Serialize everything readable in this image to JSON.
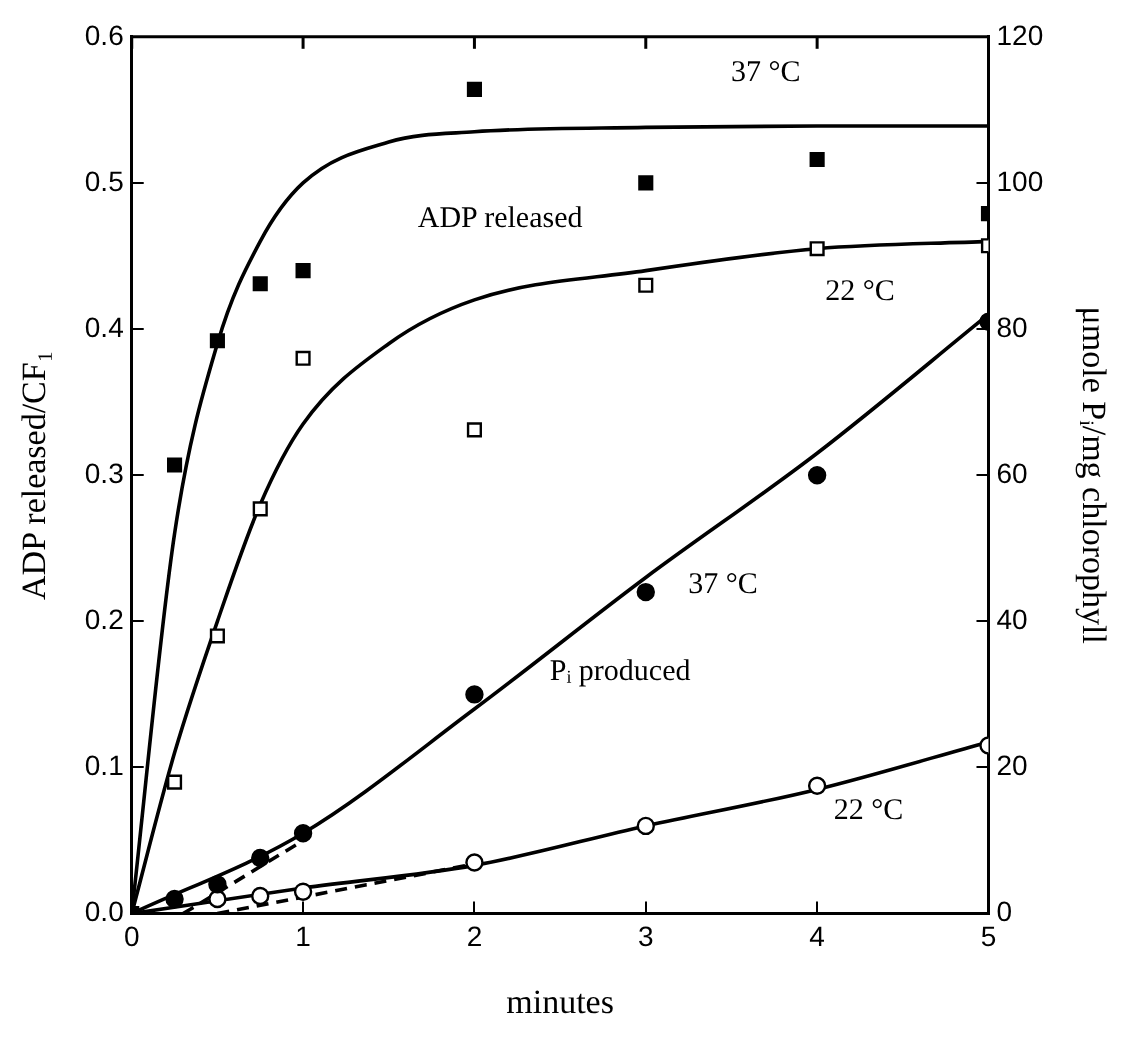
{
  "chart_data": {
    "type": "scatter",
    "xlabel": "minutes",
    "ylabel": "ADP released/CF₁",
    "y2label": "μmole Pᵢ/mg chlorophyll",
    "xlim": [
      0,
      5
    ],
    "xticks": [
      0,
      1,
      2,
      3,
      4,
      5
    ],
    "ylim": [
      0,
      0.6
    ],
    "yticks": [
      {
        "value": 0,
        "label": "0.0"
      },
      0.1,
      0.2,
      0.3,
      0.4,
      0.5,
      0.6
    ],
    "y2lim": [
      0,
      120
    ],
    "y2ticks": [
      0,
      20,
      40,
      60,
      80,
      100,
      120
    ],
    "grid": false,
    "legend": false,
    "series": [
      {
        "type": "scatter",
        "marker": "square",
        "color": "#000000",
        "x": [
          0,
          0.25,
          0.5,
          0.75,
          1,
          2,
          3,
          4,
          5
        ],
        "values": [
          0,
          0.307,
          0.392,
          0.431,
          0.44,
          0.564,
          0.5,
          0.516,
          0.479
        ]
      },
      {
        "type": "line",
        "marker": "none",
        "line_style": "solid",
        "color": "#000000",
        "x": [
          0,
          0.25,
          0.5,
          0.75,
          1,
          1.5,
          2,
          3,
          4,
          5
        ],
        "values": [
          0,
          0.26,
          0.39,
          0.46,
          0.5,
          0.528,
          0.535,
          0.538,
          0.539,
          0.539
        ]
      },
      {
        "type": "scatter",
        "marker": "square",
        "color": "#ffffff",
        "x": [
          0.25,
          0.5,
          0.75,
          1,
          2,
          3,
          4,
          5
        ],
        "values": [
          0.09,
          0.19,
          0.277,
          0.38,
          0.331,
          0.43,
          0.455,
          0.457
        ]
      },
      {
        "type": "line",
        "marker": "none",
        "line_style": "solid",
        "color": "#000000",
        "x": [
          0,
          0.25,
          0.5,
          0.75,
          1,
          1.5,
          2,
          3,
          4,
          5
        ],
        "values": [
          0,
          0.11,
          0.2,
          0.28,
          0.335,
          0.39,
          0.42,
          0.44,
          0.455,
          0.46
        ]
      },
      {
        "type": "scatter",
        "axis": "y2",
        "marker": "circle",
        "color": "#000000",
        "x": [
          0.25,
          0.5,
          0.75,
          1,
          2,
          3,
          4,
          5
        ],
        "values": [
          2,
          4,
          7.6,
          11,
          30,
          44,
          60,
          81
        ]
      },
      {
        "type": "line",
        "axis": "y2",
        "marker": "none",
        "line_style": "solid",
        "color": "#000000",
        "x": [
          0,
          1,
          2,
          3,
          4,
          5
        ],
        "values": [
          0,
          11,
          28,
          46,
          63,
          82
        ]
      },
      {
        "type": "line",
        "axis": "y2",
        "marker": "none",
        "line_style": "dashed",
        "color": "#000000",
        "x": [
          0.3,
          1
        ],
        "values": [
          0,
          10
        ]
      },
      {
        "type": "scatter",
        "axis": "y2",
        "marker": "circle",
        "color": "#ffffff",
        "x": [
          0.5,
          0.75,
          1,
          2,
          3,
          4,
          5
        ],
        "values": [
          2,
          2.4,
          3,
          7,
          12,
          17.5,
          23
        ]
      },
      {
        "type": "line",
        "axis": "y2",
        "marker": "none",
        "line_style": "solid",
        "color": "#000000",
        "x": [
          0,
          1,
          2,
          3,
          4,
          5
        ],
        "values": [
          0,
          3.5,
          6.6,
          12,
          17,
          23.5
        ]
      },
      {
        "type": "line",
        "axis": "y2",
        "marker": "none",
        "line_style": "dashed",
        "color": "#000000",
        "x": [
          0.5,
          2
        ],
        "values": [
          0,
          6.8
        ]
      }
    ],
    "annotations": [
      "37 °C",
      "ADP released",
      "22 °C",
      "37 °C",
      "Pᵢ produced",
      "22 °C"
    ]
  }
}
